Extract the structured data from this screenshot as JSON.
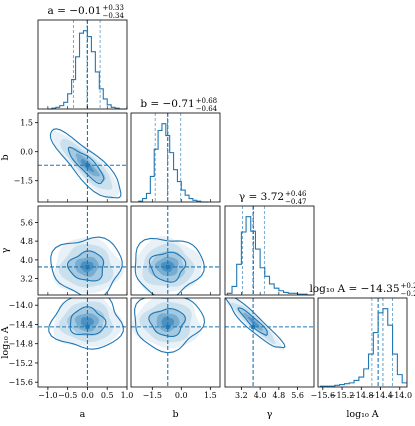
{
  "chart_data": {
    "type": "corner",
    "color": "#1f77b4",
    "parameters": [
      {
        "label": "a",
        "truth": 0.0,
        "range": [
          -1.25,
          1.0
        ],
        "ticks": [
          -1.0,
          -0.5,
          0.0,
          0.5,
          1.0
        ],
        "tick_labels": [
          "−1.0",
          "−0.5",
          "0.0",
          "0.5",
          "1.0"
        ],
        "title_main": "a = −0.01",
        "title_sup": "+0.33",
        "title_sub": "−0.34",
        "quantiles": [
          -0.35,
          -0.01,
          0.32
        ]
      },
      {
        "label": "b",
        "truth": -0.7,
        "range": [
          -2.6,
          2.0
        ],
        "ticks": [
          -1.5,
          0.0,
          1.5
        ],
        "tick_labels": [
          "−1.5",
          "0.0",
          "1.5"
        ],
        "title_main": "b = −0.71",
        "title_sup": "+0.68",
        "title_sub": "−0.64",
        "quantiles": [
          -1.35,
          -0.71,
          -0.03
        ]
      },
      {
        "label": "γ",
        "truth": 3.7,
        "range": [
          2.5,
          6.3
        ],
        "ticks": [
          3.2,
          4.0,
          4.8,
          5.6
        ],
        "tick_labels": [
          "3.2",
          "4.0",
          "4.8",
          "5.6"
        ],
        "title_main": "γ = 3.72",
        "title_sup": "+0.46",
        "title_sub": "−0.47",
        "quantiles": [
          3.25,
          3.72,
          4.18
        ]
      },
      {
        "label": "log₁₀ A",
        "truth": -14.45,
        "range": [
          -15.7,
          -13.85
        ],
        "ticks": [
          -15.6,
          -15.2,
          -14.8,
          -14.4,
          -14.0
        ],
        "tick_labels": [
          "−15.6",
          "−15.2",
          "−14.8",
          "−14.4",
          "−14.0"
        ],
        "title_main": "log₁₀ A = −14.35",
        "title_sup": "+0.20",
        "title_sub": "−0.23",
        "quantiles": [
          -14.58,
          -14.35,
          -14.15
        ]
      }
    ],
    "histograms": [
      {
        "param": "a",
        "bin_edges_start": -1.0,
        "bin_width": 0.1,
        "counts": [
          0,
          1,
          2,
          4,
          8,
          18,
          35,
          62,
          90,
          93,
          86,
          68,
          44,
          24,
          12,
          5,
          2,
          1,
          0,
          0
        ]
      },
      {
        "param": "b",
        "bin_edges_start": -2.2,
        "bin_width": 0.2,
        "counts": [
          1,
          4,
          10,
          30,
          62,
          84,
          92,
          78,
          58,
          38,
          24,
          14,
          8,
          4,
          2,
          1,
          0,
          0
        ]
      },
      {
        "param": "γ",
        "bin_edges_start": 2.6,
        "bin_width": 0.2,
        "counts": [
          2,
          10,
          36,
          74,
          92,
          75,
          54,
          32,
          22,
          13,
          8,
          5,
          3,
          2,
          2,
          1,
          1,
          0
        ]
      },
      {
        "param": "log₁₀ A",
        "bin_edges_start": -15.65,
        "bin_width": 0.1,
        "counts": [
          1,
          1,
          1,
          2,
          3,
          4,
          5,
          8,
          12,
          22,
          40,
          66,
          90,
          95,
          75,
          40,
          15,
          5
        ]
      }
    ],
    "pairs": [
      {
        "x": "a",
        "y": "b",
        "center": [
          -0.01,
          -0.71
        ],
        "sigma": [
          0.33,
          0.66
        ],
        "rho": -0.85
      },
      {
        "x": "a",
        "y": "γ",
        "center": [
          -0.01,
          3.72
        ],
        "sigma": [
          0.33,
          0.46
        ],
        "rho": 0.0
      },
      {
        "x": "b",
        "y": "γ",
        "center": [
          -0.71,
          3.72
        ],
        "sigma": [
          0.66,
          0.46
        ],
        "rho": 0.0
      },
      {
        "x": "a",
        "y": "log₁₀ A",
        "center": [
          -0.01,
          -14.35
        ],
        "sigma": [
          0.33,
          0.21
        ],
        "rho": 0.0
      },
      {
        "x": "b",
        "y": "log₁₀ A",
        "center": [
          -0.71,
          -14.35
        ],
        "sigma": [
          0.66,
          0.21
        ],
        "rho": 0.0
      },
      {
        "x": "γ",
        "y": "log₁₀ A",
        "center": [
          3.72,
          -14.35
        ],
        "sigma": [
          0.46,
          0.21
        ],
        "rho": -0.93
      }
    ],
    "contour_levels_sigma": [
      1,
      2
    ],
    "truth_lines": true,
    "grid": false
  }
}
